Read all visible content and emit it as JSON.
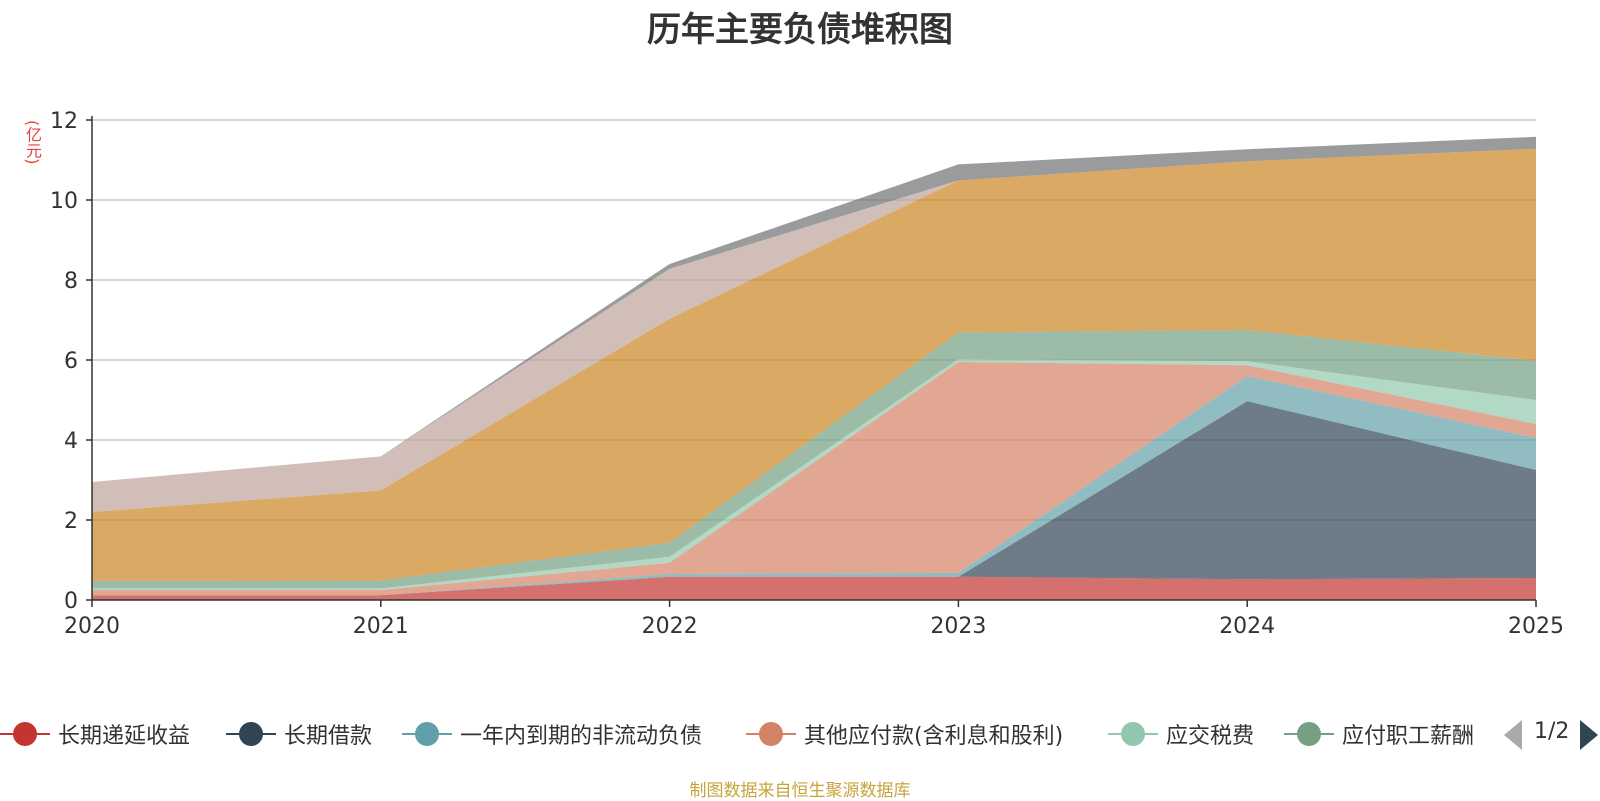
{
  "chart_data": {
    "type": "area",
    "stacked": true,
    "title": "历年主要负债堆积图",
    "unit_label": "(亿元)",
    "x": [
      "2020",
      "2021",
      "2022",
      "2023",
      "2024",
      "2025"
    ],
    "ylim": [
      0,
      12
    ],
    "yticks": [
      "0",
      "2",
      "4",
      "6",
      "8",
      "10",
      "12"
    ],
    "grid": true,
    "legend_position": "bottom",
    "series": [
      {
        "name": "长期递延收益",
        "color": "#c23531",
        "values": [
          0.12,
          0.12,
          0.58,
          0.58,
          0.52,
          0.55
        ]
      },
      {
        "name": "长期借款",
        "color": "#2f4554",
        "values": [
          0.0,
          0.0,
          0.0,
          0.0,
          4.45,
          2.7
        ]
      },
      {
        "name": "一年内到期的非流动负债",
        "color": "#61a0a8",
        "values": [
          0.0,
          0.0,
          0.07,
          0.1,
          0.63,
          0.8
        ]
      },
      {
        "name": "其他应付款(含利息和股利)",
        "color": "#d48265",
        "values": [
          0.13,
          0.13,
          0.28,
          5.27,
          0.27,
          0.35
        ]
      },
      {
        "name": "应交税费",
        "color": "#91c7ae",
        "values": [
          0.04,
          0.04,
          0.15,
          0.07,
          0.1,
          0.6
        ]
      },
      {
        "name": "应付职工薪酬",
        "color": "#749f83",
        "values": [
          0.19,
          0.2,
          0.35,
          0.67,
          0.78,
          0.98
        ]
      },
      {
        "name": "",
        "color": "#ca8622",
        "values": [
          1.72,
          2.25,
          5.6,
          3.8,
          4.22,
          5.3
        ]
      },
      {
        "name": "",
        "color": "#bda29a",
        "values": [
          0.75,
          0.85,
          1.25,
          0.0,
          0.0,
          0.0
        ]
      },
      {
        "name": "",
        "color": "#6e7074",
        "values": [
          0.0,
          0.0,
          0.12,
          0.4,
          0.3,
          0.3
        ]
      }
    ]
  },
  "legend": {
    "items": [
      "长期递延收益",
      "长期借款",
      "一年内到期的非流动负债",
      "其他应付款(含利息和股利)",
      "应交税费",
      "应付职工薪酬"
    ],
    "page": "1/2"
  },
  "icons": {
    "prev": "triangle-left-icon",
    "next": "triangle-right-icon"
  },
  "source": "制图数据来自恒生聚源数据库"
}
